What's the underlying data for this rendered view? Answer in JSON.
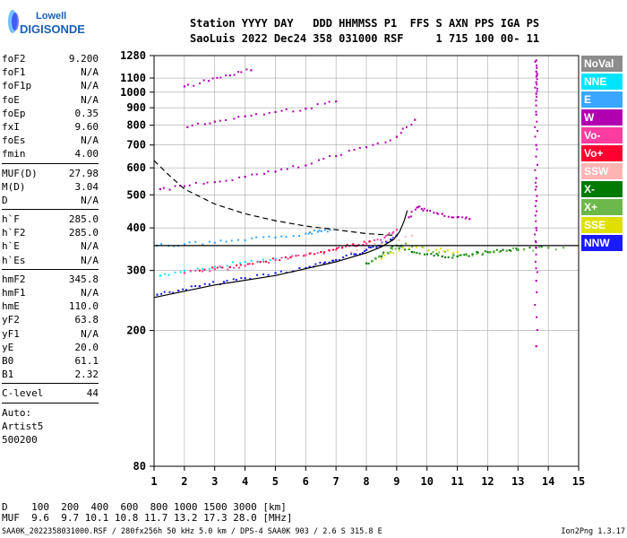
{
  "logo": {
    "line1": "Lowell",
    "line2": "DIGISONDE"
  },
  "header": {
    "line1": "Station YYYY DAY   DDD HHMMSS P1  FFS S AXN PPS IGA PS",
    "line2": "SaoLuis 2022 Dec24 358 031000 RSF     1 715 100 00- 11"
  },
  "params": [
    {
      "label": "foF2",
      "value": "9.200"
    },
    {
      "label": "foF1",
      "value": "N/A"
    },
    {
      "label": "foF1p",
      "value": "N/A"
    },
    {
      "label": "foE",
      "value": "N/A"
    },
    {
      "label": "foEp",
      "value": "0.35"
    },
    {
      "label": "fxI",
      "value": "9.60"
    },
    {
      "label": "foEs",
      "value": "N/A"
    },
    {
      "label": "fmin",
      "value": "4.00"
    },
    {
      "sep": true
    },
    {
      "label": "MUF(D)",
      "value": "27.98"
    },
    {
      "label": "M(D)",
      "value": "3.04"
    },
    {
      "label": "D",
      "value": "N/A"
    },
    {
      "sep": true
    },
    {
      "label": "h`F",
      "value": "285.0"
    },
    {
      "label": "h`F2",
      "value": "285.0"
    },
    {
      "label": "h`E",
      "value": "N/A"
    },
    {
      "label": "h`Es",
      "value": "N/A"
    },
    {
      "sep": true
    },
    {
      "label": "hmF2",
      "value": "345.8"
    },
    {
      "label": "hmF1",
      "value": "N/A"
    },
    {
      "label": "hmE",
      "value": "110.0"
    },
    {
      "label": "yF2",
      "value": "63.8"
    },
    {
      "label": "yF1",
      "value": "N/A"
    },
    {
      "label": "yE",
      "value": "20.0"
    },
    {
      "label": "B0",
      "value": "61.1"
    },
    {
      "label": "B1",
      "value": "2.32"
    },
    {
      "sep": true
    },
    {
      "label": "C-level",
      "value": "44"
    },
    {
      "sep": true
    },
    {
      "text": "Auto:"
    },
    {
      "text": "Artist5"
    },
    {
      "text": "500200"
    }
  ],
  "legend": [
    {
      "label": "NoVal",
      "color": "#8c8c8c"
    },
    {
      "label": "NNE",
      "color": "#00e5ff"
    },
    {
      "label": "E",
      "color": "#3aa6ff"
    },
    {
      "label": "W",
      "color": "#b000b0"
    },
    {
      "label": "Vo-",
      "color": "#ff3ca0"
    },
    {
      "label": "Vo+",
      "color": "#ff0030"
    },
    {
      "label": "SSW",
      "color": "#ffb4b4"
    },
    {
      "label": "X-",
      "color": "#007a00"
    },
    {
      "label": "X+",
      "color": "#6cb84a"
    },
    {
      "label": "SSE",
      "color": "#e0e000"
    },
    {
      "label": "NNW",
      "color": "#1a1aff"
    }
  ],
  "muf_table": {
    "line1": "D    100  200  400  600  800 1000 1500 3000 [km]",
    "line2": "MUF  9.6  9.7 10.1 10.8 11.7 13.2 17.3 28.0 [MHz]"
  },
  "footer": {
    "left": "SAA0K_2022358031000.RSF / 280fx256h 50 kHz 5.0 km / DPS-4 SAA0K 903 / 2.6 S 315.8 E",
    "right": "Ion2Png 1.3.17"
  },
  "chart_data": {
    "type": "scatter",
    "x_ticks": [
      1,
      2,
      3,
      4,
      5,
      6,
      7,
      8,
      9,
      10,
      11,
      12,
      13,
      14,
      15
    ],
    "y_ticks": [
      80,
      200,
      300,
      400,
      500,
      600,
      700,
      800,
      900,
      1000,
      1100,
      1280
    ],
    "xlim": [
      1,
      15
    ],
    "ylim": [
      80,
      1280
    ],
    "y_scale": "log",
    "grid": true,
    "series": [
      {
        "color": "#1a1aff",
        "points": [
          [
            1.1,
            255
          ],
          [
            1.8,
            262
          ],
          [
            2.5,
            270
          ],
          [
            3.3,
            278
          ],
          [
            4,
            285
          ],
          [
            5,
            295
          ],
          [
            6,
            305
          ],
          [
            6.6,
            315
          ],
          [
            7,
            322
          ],
          [
            7.6,
            335
          ],
          [
            8,
            345
          ],
          [
            8.4,
            355
          ],
          [
            8.8,
            370
          ],
          [
            9,
            380
          ]
        ]
      },
      {
        "color": "#3aa6ff",
        "points": [
          [
            1.1,
            355
          ],
          [
            2,
            358
          ],
          [
            3,
            362
          ],
          [
            4,
            368
          ],
          [
            5,
            375
          ],
          [
            6,
            385
          ],
          [
            6.4,
            390
          ],
          [
            6.8,
            395
          ]
        ]
      },
      {
        "color": "#00e5ff",
        "points": [
          [
            1.2,
            290
          ],
          [
            2,
            300
          ],
          [
            3,
            308
          ],
          [
            4,
            318
          ],
          [
            5,
            325
          ]
        ]
      },
      {
        "color": "#b000b0",
        "points": [
          [
            1.2,
            520
          ],
          [
            2,
            530
          ],
          [
            3,
            545
          ],
          [
            4,
            565
          ],
          [
            5,
            585
          ],
          [
            6,
            610
          ],
          [
            7,
            650
          ],
          [
            8,
            690
          ],
          [
            9,
            740
          ],
          [
            9.6,
            830
          ]
        ]
      },
      {
        "color": "#b000b0",
        "points": [
          [
            2.1,
            790
          ],
          [
            3,
            820
          ],
          [
            4,
            850
          ],
          [
            5,
            875
          ],
          [
            6,
            895
          ],
          [
            7,
            940
          ]
        ]
      },
      {
        "color": "#b000b0",
        "points": [
          [
            2,
            1040
          ],
          [
            2.8,
            1080
          ],
          [
            3.5,
            1120
          ],
          [
            4.2,
            1160
          ]
        ]
      },
      {
        "color": "#ff3ca0",
        "points": [
          [
            2,
            295
          ],
          [
            3,
            303
          ],
          [
            4,
            310
          ],
          [
            5,
            322
          ],
          [
            6,
            333
          ],
          [
            7,
            345
          ],
          [
            7.6,
            355
          ],
          [
            8,
            360
          ],
          [
            8.6,
            375
          ],
          [
            9,
            395
          ]
        ]
      },
      {
        "color": "#ff0030",
        "points": [
          [
            2.5,
            300
          ],
          [
            3.5,
            307
          ],
          [
            4.5,
            318
          ],
          [
            5.5,
            328
          ],
          [
            6.5,
            340
          ],
          [
            7.2,
            350
          ],
          [
            8.1,
            365
          ]
        ]
      },
      {
        "color": "#007a00",
        "points": [
          [
            8,
            315
          ],
          [
            8.5,
            330
          ],
          [
            9,
            355
          ],
          [
            9.5,
            340
          ],
          [
            10,
            335
          ],
          [
            10.5,
            330
          ],
          [
            11,
            330
          ],
          [
            11.5,
            335
          ],
          [
            12,
            340
          ],
          [
            12.5,
            345
          ],
          [
            13,
            345
          ],
          [
            14,
            350
          ]
        ]
      },
      {
        "color": "#6cb84a",
        "points": [
          [
            8.2,
            320
          ],
          [
            8.8,
            340
          ],
          [
            9.3,
            360
          ],
          [
            10.2,
            340
          ],
          [
            11.3,
            333
          ],
          [
            12.2,
            342
          ],
          [
            13.2,
            346
          ],
          [
            14.5,
            350
          ]
        ]
      },
      {
        "color": "#e0e000",
        "points": [
          [
            8.5,
            325
          ],
          [
            9.2,
            350
          ],
          [
            10.3,
            345
          ],
          [
            11,
            340
          ]
        ]
      },
      {
        "color": "#ffb4b4",
        "points": [
          [
            7.5,
            340
          ],
          [
            8.5,
            360
          ],
          [
            9.5,
            380
          ]
        ]
      },
      {
        "color": "#b000b0",
        "points": [
          [
            9.4,
            430
          ],
          [
            9.7,
            460
          ],
          [
            10,
            450
          ],
          [
            10.5,
            440
          ],
          [
            11,
            430
          ],
          [
            11.4,
            425
          ]
        ]
      },
      {
        "color": "#b000b0",
        "points": [
          [
            13.6,
            1240
          ],
          [
            13.6,
            1150
          ],
          [
            13.6,
            1070
          ],
          [
            13.6,
            990
          ],
          [
            13.6,
            860
          ],
          [
            13.6,
            700
          ],
          [
            13.6,
            560
          ],
          [
            13.6,
            480
          ],
          [
            13.6,
            400
          ],
          [
            13.6,
            350
          ],
          [
            13.6,
            280
          ],
          [
            13.6,
            180
          ]
        ]
      }
    ],
    "lines": [
      {
        "style": "solid",
        "color": "#000",
        "points": [
          [
            1,
            250
          ],
          [
            3,
            272
          ],
          [
            5,
            290
          ],
          [
            7,
            318
          ],
          [
            8,
            338
          ],
          [
            8.5,
            352
          ],
          [
            8.9,
            370
          ],
          [
            9.1,
            390
          ],
          [
            9.25,
            420
          ],
          [
            9.35,
            450
          ]
        ]
      },
      {
        "style": "solid",
        "color": "#000",
        "points": [
          [
            1,
            355
          ],
          [
            15,
            355
          ]
        ]
      },
      {
        "style": "dashed",
        "color": "#000",
        "points": [
          [
            1,
            630
          ],
          [
            1.5,
            570
          ],
          [
            2,
            520
          ],
          [
            3,
            470
          ],
          [
            4,
            440
          ],
          [
            5,
            420
          ],
          [
            6,
            405
          ],
          [
            7,
            395
          ],
          [
            8,
            385
          ],
          [
            9,
            380
          ]
        ]
      }
    ]
  }
}
